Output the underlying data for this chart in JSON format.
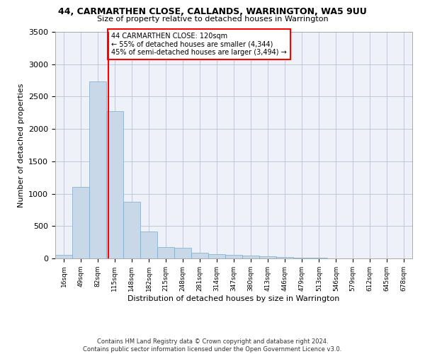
{
  "title": "44, CARMARTHEN CLOSE, CALLANDS, WARRINGTON, WA5 9UU",
  "subtitle": "Size of property relative to detached houses in Warrington",
  "xlabel": "Distribution of detached houses by size in Warrington",
  "ylabel": "Number of detached properties",
  "bar_color": "#c8d8e8",
  "bar_edge_color": "#7aaac8",
  "grid_color": "#c0c8d8",
  "background_color": "#eef2f8",
  "vline_x": 120,
  "vline_color": "red",
  "annotation_text": "44 CARMARTHEN CLOSE: 120sqm\n← 55% of detached houses are smaller (4,344)\n45% of semi-detached houses are larger (3,494) →",
  "bins": [
    16,
    49,
    82,
    115,
    148,
    182,
    215,
    248,
    281,
    314,
    347,
    380,
    413,
    446,
    479,
    513,
    546,
    579,
    612,
    645,
    678
  ],
  "counts": [
    55,
    1100,
    2730,
    2280,
    880,
    420,
    170,
    160,
    90,
    65,
    50,
    40,
    30,
    25,
    10,
    8,
    5,
    3,
    2,
    1
  ],
  "footer": "Contains HM Land Registry data © Crown copyright and database right 2024.\nContains public sector information licensed under the Open Government Licence v3.0.",
  "ylim": [
    0,
    3500
  ],
  "yticks": [
    0,
    500,
    1000,
    1500,
    2000,
    2500,
    3000,
    3500
  ]
}
